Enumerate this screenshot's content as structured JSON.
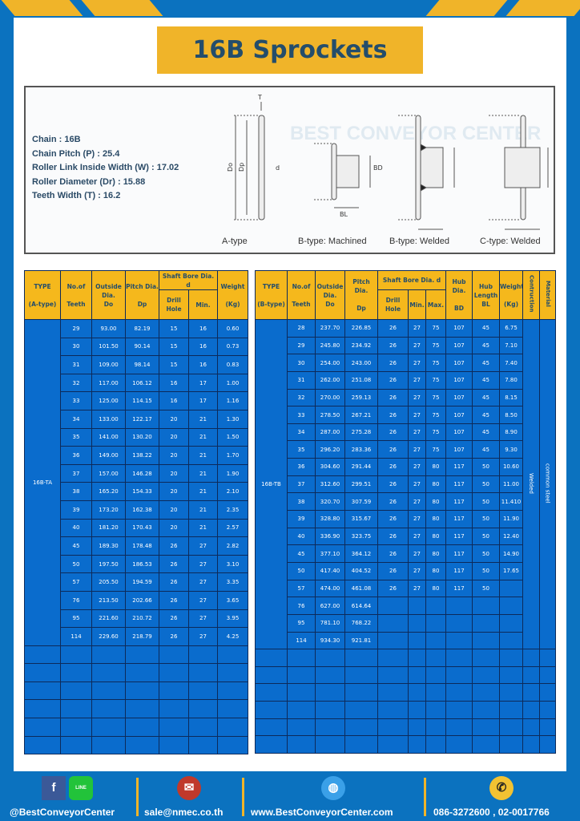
{
  "title": "16B Sprockets",
  "specs": [
    "Chain : 16B",
    "Chain Pitch (P) : 25.4",
    "Roller Link Inside Width (W) : 17.02",
    "Roller Diameter (Dr) : 15.88",
    "Teeth Width (T) : 16.2"
  ],
  "diagram_captions": [
    "A-type",
    "B-type: Machined",
    "B-type: Welded",
    "C-type: Welded"
  ],
  "diagram_labels": {
    "t": "T",
    "do": "Do",
    "dp": "Dp",
    "d": "d",
    "bd": "BD",
    "bl": "BL"
  },
  "watermark": "BEST CONVEYOR CENTER",
  "table_a": {
    "headers": {
      "type": "TYPE",
      "type_sub": "(A-type)",
      "teeth": "No.of",
      "teeth_sub": "Teeth",
      "do": "Outside",
      "do_sub": "Dia.",
      "do_sub2": "Do",
      "dp": "Pitch Dia.",
      "dp_sub": "Dp",
      "bore": "Shaft Bore Dia. d",
      "drill": "Drill Hole",
      "min": "Min.",
      "weight": "Weight",
      "weight_sub": "(Kg)"
    },
    "type_value": "16B-TA",
    "rows": [
      [
        "29",
        "93.00",
        "82.19",
        "15",
        "16",
        "0.60"
      ],
      [
        "30",
        "101.50",
        "90.14",
        "15",
        "16",
        "0.73"
      ],
      [
        "31",
        "109.00",
        "98.14",
        "15",
        "16",
        "0.83"
      ],
      [
        "32",
        "117.00",
        "106.12",
        "16",
        "17",
        "1.00"
      ],
      [
        "33",
        "125.00",
        "114.15",
        "16",
        "17",
        "1.16"
      ],
      [
        "34",
        "133.00",
        "122.17",
        "20",
        "21",
        "1.30"
      ],
      [
        "35",
        "141.00",
        "130.20",
        "20",
        "21",
        "1.50"
      ],
      [
        "36",
        "149.00",
        "138.22",
        "20",
        "21",
        "1.70"
      ],
      [
        "37",
        "157.00",
        "146.28",
        "20",
        "21",
        "1.90"
      ],
      [
        "38",
        "165.20",
        "154.33",
        "20",
        "21",
        "2.10"
      ],
      [
        "39",
        "173.20",
        "162.38",
        "20",
        "21",
        "2.35"
      ],
      [
        "40",
        "181.20",
        "170.43",
        "20",
        "21",
        "2.57"
      ],
      [
        "45",
        "189.30",
        "178.48",
        "26",
        "27",
        "2.82"
      ],
      [
        "50",
        "197.50",
        "186.53",
        "26",
        "27",
        "3.10"
      ],
      [
        "57",
        "205.50",
        "194.59",
        "26",
        "27",
        "3.35"
      ],
      [
        "76",
        "213.50",
        "202.66",
        "26",
        "27",
        "3.65"
      ],
      [
        "95",
        "221.60",
        "210.72",
        "26",
        "27",
        "3.95"
      ],
      [
        "114",
        "229.60",
        "218.79",
        "26",
        "27",
        "4.25"
      ]
    ]
  },
  "table_b": {
    "headers": {
      "type": "TYPE",
      "type_sub": "(B-type)",
      "teeth": "No.of",
      "teeth_sub": "Teeth",
      "do": "Outside",
      "do_sub": "Dia.",
      "do_sub2": "Do",
      "dp": "Pitch Dia.",
      "dp_sub": "Dp",
      "bore": "Shaft Bore Dia. d",
      "drill": "Drill Hole",
      "min": "Min.",
      "max": "Max.",
      "bd": "Hub Dia.",
      "bd_sub": "BD",
      "bl": "Hub",
      "bl_sub": "Length",
      "bl_sub2": "BL",
      "weight": "Weight",
      "weight_sub": "(Kg)",
      "construction": "Contruction",
      "material": "Material"
    },
    "type_value": "16B-TB",
    "construction_value": "Welded",
    "material_value": "common steel",
    "rows": [
      [
        "28",
        "237.70",
        "226.85",
        "26",
        "27",
        "75",
        "107",
        "45",
        "6.75"
      ],
      [
        "29",
        "245.80",
        "234.92",
        "26",
        "27",
        "75",
        "107",
        "45",
        "7.10"
      ],
      [
        "30",
        "254.00",
        "243.00",
        "26",
        "27",
        "75",
        "107",
        "45",
        "7.40"
      ],
      [
        "31",
        "262.00",
        "251.08",
        "26",
        "27",
        "75",
        "107",
        "45",
        "7.80"
      ],
      [
        "32",
        "270.00",
        "259.13",
        "26",
        "27",
        "75",
        "107",
        "45",
        "8.15"
      ],
      [
        "33",
        "278.50",
        "267.21",
        "26",
        "27",
        "75",
        "107",
        "45",
        "8.50"
      ],
      [
        "34",
        "287.00",
        "275.28",
        "26",
        "27",
        "75",
        "107",
        "45",
        "8.90"
      ],
      [
        "35",
        "296.20",
        "283.36",
        "26",
        "27",
        "75",
        "107",
        "45",
        "9.30"
      ],
      [
        "36",
        "304.60",
        "291.44",
        "26",
        "27",
        "80",
        "117",
        "50",
        "10.60"
      ],
      [
        "37",
        "312.60",
        "299.51",
        "26",
        "27",
        "80",
        "117",
        "50",
        "11.00"
      ],
      [
        "38",
        "320.70",
        "307.59",
        "26",
        "27",
        "80",
        "117",
        "50",
        "11.410"
      ],
      [
        "39",
        "328.80",
        "315.67",
        "26",
        "27",
        "80",
        "117",
        "50",
        "11.90"
      ],
      [
        "40",
        "336.90",
        "323.75",
        "26",
        "27",
        "80",
        "117",
        "50",
        "12.40"
      ],
      [
        "45",
        "377.10",
        "364.12",
        "26",
        "27",
        "80",
        "117",
        "50",
        "14.90"
      ],
      [
        "50",
        "417.40",
        "404.52",
        "26",
        "27",
        "80",
        "117",
        "50",
        "17.65"
      ],
      [
        "57",
        "474.00",
        "461.08",
        "26",
        "27",
        "80",
        "117",
        "50",
        ""
      ],
      [
        "76",
        "627.00",
        "614.64",
        "",
        "",
        "",
        "",
        "",
        ""
      ],
      [
        "95",
        "781.10",
        "768.22",
        "",
        "",
        "",
        "",
        "",
        ""
      ],
      [
        "114",
        "934.30",
        "921.81",
        "",
        "",
        "",
        "",
        "",
        ""
      ]
    ]
  },
  "footer": {
    "social": "@BestConveyorCenter",
    "email": "sale@nmec.co.th",
    "website": "www.BestConveyorCenter.com",
    "phone": "086-3272600 , 02-0017766",
    "line_badge": "LINE"
  },
  "colors": {
    "frame_blue": "#0b72bf",
    "accent_yellow": "#f0b429",
    "cell_blue": "#0a6ccd",
    "title_text": "#244d6b"
  }
}
